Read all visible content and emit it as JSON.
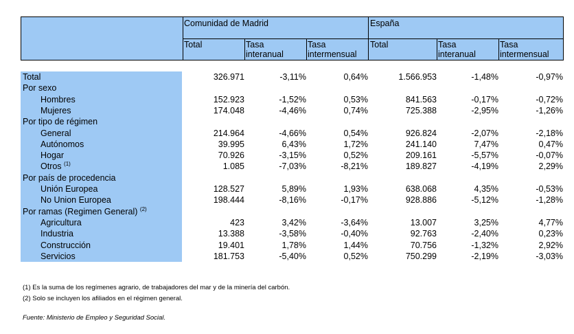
{
  "header": {
    "group_madrid": "Comunidad de Madrid",
    "group_espana": "España",
    "col_total": "Total",
    "col_tasa": "Tasa",
    "col_interanual": "interanual",
    "col_intermensual": "intermensual"
  },
  "rows": [
    {
      "label": "Total",
      "indent": false,
      "values": [
        "326.971",
        "-3,11%",
        "0,64%",
        "1.566.953",
        "-1,48%",
        "-0,97%"
      ]
    },
    {
      "label": "Por sexo",
      "indent": false,
      "values": [
        "",
        "",
        "",
        "",
        "",
        ""
      ]
    },
    {
      "label": "Hombres",
      "indent": true,
      "values": [
        "152.923",
        "-1,52%",
        "0,53%",
        "841.563",
        "-0,17%",
        "-0,72%"
      ]
    },
    {
      "label": "Mujeres",
      "indent": true,
      "values": [
        "174.048",
        "-4,46%",
        "0,74%",
        "725.388",
        "-2,95%",
        "-1,26%"
      ]
    },
    {
      "label": "Por tipo de régimen",
      "indent": false,
      "values": [
        "",
        "",
        "",
        "",
        "",
        ""
      ]
    },
    {
      "label": "General",
      "indent": true,
      "values": [
        "214.964",
        "-4,66%",
        "0,54%",
        "926.824",
        "-2,07%",
        "-2,18%"
      ]
    },
    {
      "label": "Autónomos",
      "indent": true,
      "values": [
        "39.995",
        "6,43%",
        "1,72%",
        "241.140",
        "7,47%",
        "0,47%"
      ]
    },
    {
      "label": "Hogar",
      "indent": true,
      "values": [
        "70.926",
        "-3,15%",
        "0,52%",
        "209.161",
        "-5,57%",
        "-0,07%"
      ]
    },
    {
      "label": "Otros",
      "sup": "(1)",
      "indent": true,
      "values": [
        "1.085",
        "-7,03%",
        "-8,21%",
        "189.827",
        "-4,19%",
        "2,29%"
      ]
    },
    {
      "label": "Por país de procedencia",
      "indent": false,
      "values": [
        "",
        "",
        "",
        "",
        "",
        ""
      ]
    },
    {
      "label": "Unión Europea",
      "indent": true,
      "values": [
        "128.527",
        "5,89%",
        "1,93%",
        "638.068",
        "4,35%",
        "-0,53%"
      ]
    },
    {
      "label": "No Union Europea",
      "indent": true,
      "values": [
        "198.444",
        "-8,16%",
        "-0,17%",
        "928.886",
        "-5,12%",
        "-1,28%"
      ]
    },
    {
      "label": "Por ramas (Regimen General)",
      "sup": "(2)",
      "indent": false,
      "values": [
        "",
        "",
        "",
        "",
        "",
        ""
      ]
    },
    {
      "label": "Agricultura",
      "indent": true,
      "values": [
        "423",
        "3,42%",
        "-3,64%",
        "13.007",
        "3,25%",
        "4,77%"
      ]
    },
    {
      "label": "Industria",
      "indent": true,
      "values": [
        "13.388",
        "-3,58%",
        "-0,40%",
        "92.763",
        "-2,40%",
        "0,23%"
      ]
    },
    {
      "label": "Construcción",
      "indent": true,
      "values": [
        "19.401",
        "1,78%",
        "1,44%",
        "70.756",
        "-1,32%",
        "2,92%"
      ]
    },
    {
      "label": "Servicios",
      "indent": true,
      "values": [
        "181.753",
        "-5,40%",
        "0,52%",
        "750.299",
        "-2,19%",
        "-3,03%"
      ]
    }
  ],
  "notes": [
    "(1) Es la suma de los regímenes  agrario, de trabajadores del mar y de la minería del carbón.",
    "(2) Solo se incluyen los afiliados en el régimen general."
  ],
  "source": "Fuente: Ministerio de Empleo y Seguridad Social."
}
